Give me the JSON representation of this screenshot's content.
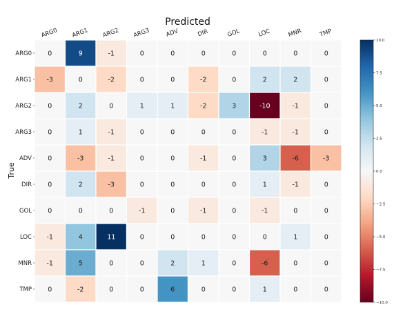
{
  "chart_data": {
    "type": "heatmap",
    "title": "Predicted",
    "xlabel": "Predicted",
    "ylabel": "True",
    "columns": [
      "ARG0",
      "ARG1",
      "ARG2",
      "ARG3",
      "ADV",
      "DIR",
      "GOL",
      "LOC",
      "MNR",
      "TMP"
    ],
    "rows": [
      "ARG0",
      "ARG1",
      "ARG2",
      "ARG3",
      "ADV",
      "DIR",
      "GOL",
      "LOC",
      "MNR",
      "TMP"
    ],
    "values": [
      [
        0,
        9,
        -1,
        0,
        0,
        0,
        0,
        0,
        0,
        0
      ],
      [
        -3,
        0,
        -2,
        0,
        0,
        -2,
        0,
        2,
        2,
        0
      ],
      [
        0,
        2,
        0,
        1,
        1,
        -2,
        3,
        -10,
        -1,
        0
      ],
      [
        0,
        1,
        -1,
        0,
        0,
        0,
        0,
        -1,
        -1,
        0
      ],
      [
        0,
        -3,
        -1,
        0,
        0,
        -1,
        0,
        3,
        -6,
        -3
      ],
      [
        0,
        2,
        -3,
        0,
        0,
        0,
        0,
        1,
        -1,
        0
      ],
      [
        0,
        0,
        0,
        -1,
        0,
        -1,
        0,
        -1,
        0,
        0
      ],
      [
        -1,
        4,
        11,
        0,
        0,
        0,
        0,
        0,
        1,
        0
      ],
      [
        -1,
        5,
        0,
        0,
        2,
        1,
        0,
        -6,
        0,
        0
      ],
      [
        0,
        -2,
        0,
        0,
        6,
        0,
        0,
        1,
        0,
        0
      ]
    ],
    "colorbar": {
      "range": [
        -10,
        10
      ],
      "ticks": [
        10.0,
        7.5,
        5.0,
        2.5,
        0.0,
        -2.5,
        -5.0,
        -7.5,
        -10.0
      ],
      "tick_labels": [
        "10.0",
        "7.5",
        "5.0",
        "2.5",
        "0.0",
        "−2.5",
        "−5.0",
        "−7.5",
        "−10.0"
      ],
      "colormap": "RdBu"
    },
    "column_label_rotation": "angled"
  }
}
